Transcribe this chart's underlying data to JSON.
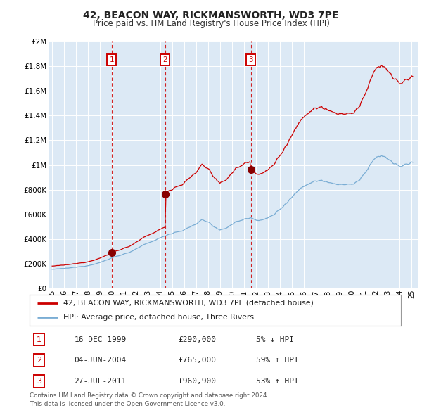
{
  "title": "42, BEACON WAY, RICKMANSWORTH, WD3 7PE",
  "subtitle": "Price paid vs. HM Land Registry's House Price Index (HPI)",
  "background_color": "#ffffff",
  "chart_bg_color": "#dce9f5",
  "grid_color": "#ffffff",
  "ylabel_ticks": [
    "£0",
    "£200K",
    "£400K",
    "£600K",
    "£800K",
    "£1M",
    "£1.2M",
    "£1.4M",
    "£1.6M",
    "£1.8M",
    "£2M"
  ],
  "ylabel_values": [
    0,
    200000,
    400000,
    600000,
    800000,
    1000000,
    1200000,
    1400000,
    1600000,
    1800000,
    2000000
  ],
  "ylim": [
    0,
    2000000
  ],
  "xlim_start": 1994.7,
  "xlim_end": 2025.5,
  "red_line_color": "#cc0000",
  "blue_line_color": "#7aadd4",
  "marker_color": "#880000",
  "vline_color": "#cc0000",
  "transactions": [
    {
      "num": 1,
      "date": "16-DEC-1999",
      "price": 290000,
      "year": 1999.96,
      "pct": "5%",
      "dir": "↓"
    },
    {
      "num": 2,
      "date": "04-JUN-2004",
      "price": 765000,
      "year": 2004.42,
      "pct": "59%",
      "dir": "↑"
    },
    {
      "num": 3,
      "date": "27-JUL-2011",
      "price": 960900,
      "year": 2011.57,
      "pct": "53%",
      "dir": "↑"
    }
  ],
  "legend_line1": "42, BEACON WAY, RICKMANSWORTH, WD3 7PE (detached house)",
  "legend_line2": "HPI: Average price, detached house, Three Rivers",
  "footer1": "Contains HM Land Registry data © Crown copyright and database right 2024.",
  "footer2": "This data is licensed under the Open Government Licence v3.0.",
  "sale1_year": 1999.96,
  "sale1_price": 290000,
  "sale2_year": 2004.42,
  "sale2_price": 765000,
  "sale3_year": 2011.57,
  "sale3_price": 960900,
  "hpi_anchors_t": [
    1995.0,
    1995.5,
    1996.0,
    1997.0,
    1998.0,
    1999.0,
    1999.5,
    2000.0,
    2000.5,
    2001.0,
    2001.5,
    2002.0,
    2002.5,
    2003.0,
    2003.5,
    2004.0,
    2004.5,
    2005.0,
    2005.5,
    2006.0,
    2006.5,
    2007.0,
    2007.5,
    2008.0,
    2008.5,
    2009.0,
    2009.5,
    2010.0,
    2010.5,
    2011.0,
    2011.5,
    2012.0,
    2012.5,
    2013.0,
    2013.5,
    2014.0,
    2014.5,
    2015.0,
    2015.5,
    2016.0,
    2016.5,
    2017.0,
    2017.5,
    2018.0,
    2018.5,
    2019.0,
    2019.5,
    2020.0,
    2020.5,
    2021.0,
    2021.5,
    2022.0,
    2022.5,
    2023.0,
    2023.5,
    2024.0,
    2024.5,
    2025.0
  ],
  "hpi_anchors_v": [
    155000,
    158000,
    162000,
    172000,
    185000,
    210000,
    228000,
    248000,
    265000,
    278000,
    295000,
    318000,
    345000,
    368000,
    388000,
    408000,
    430000,
    448000,
    460000,
    472000,
    498000,
    520000,
    558000,
    540000,
    500000,
    468000,
    490000,
    520000,
    545000,
    560000,
    570000,
    558000,
    552000,
    570000,
    600000,
    640000,
    690000,
    740000,
    790000,
    830000,
    855000,
    870000,
    875000,
    865000,
    850000,
    845000,
    840000,
    840000,
    870000,
    920000,
    990000,
    1060000,
    1080000,
    1050000,
    1010000,
    990000,
    1000000,
    1020000
  ]
}
